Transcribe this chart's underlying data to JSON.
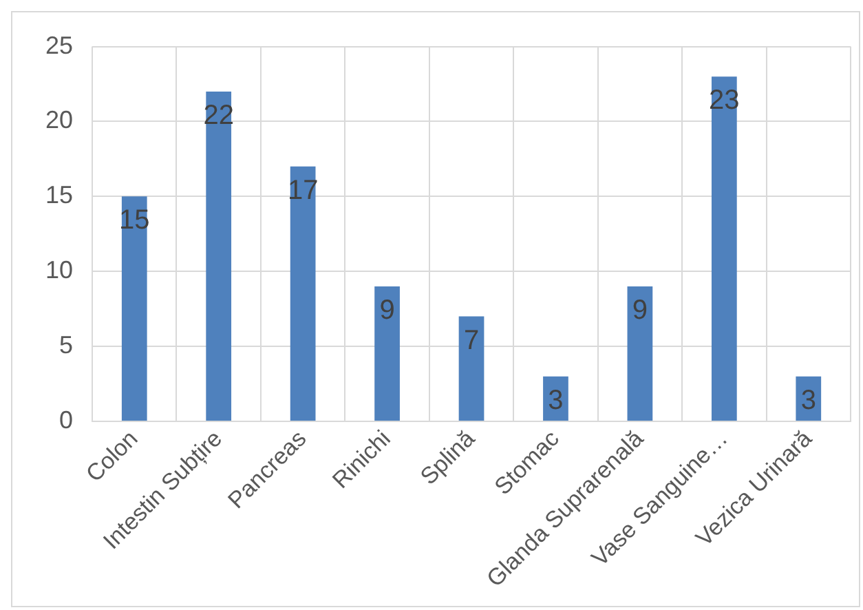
{
  "chart_data": {
    "type": "bar",
    "categories": [
      "Colon",
      "Intestin Subțire",
      "Pancreas",
      "Rinichi",
      "Splină",
      "Stomac",
      "Glanda Suprarenală",
      "Vase Sanguine…",
      "Vezica Urinară"
    ],
    "values": [
      15,
      22,
      17,
      9,
      7,
      3,
      9,
      23,
      3
    ],
    "color": "#4f81bd",
    "ylim": [
      0,
      25
    ],
    "yticks": [
      0,
      5,
      10,
      15,
      20,
      25
    ],
    "grid": true,
    "data_labels": true
  }
}
